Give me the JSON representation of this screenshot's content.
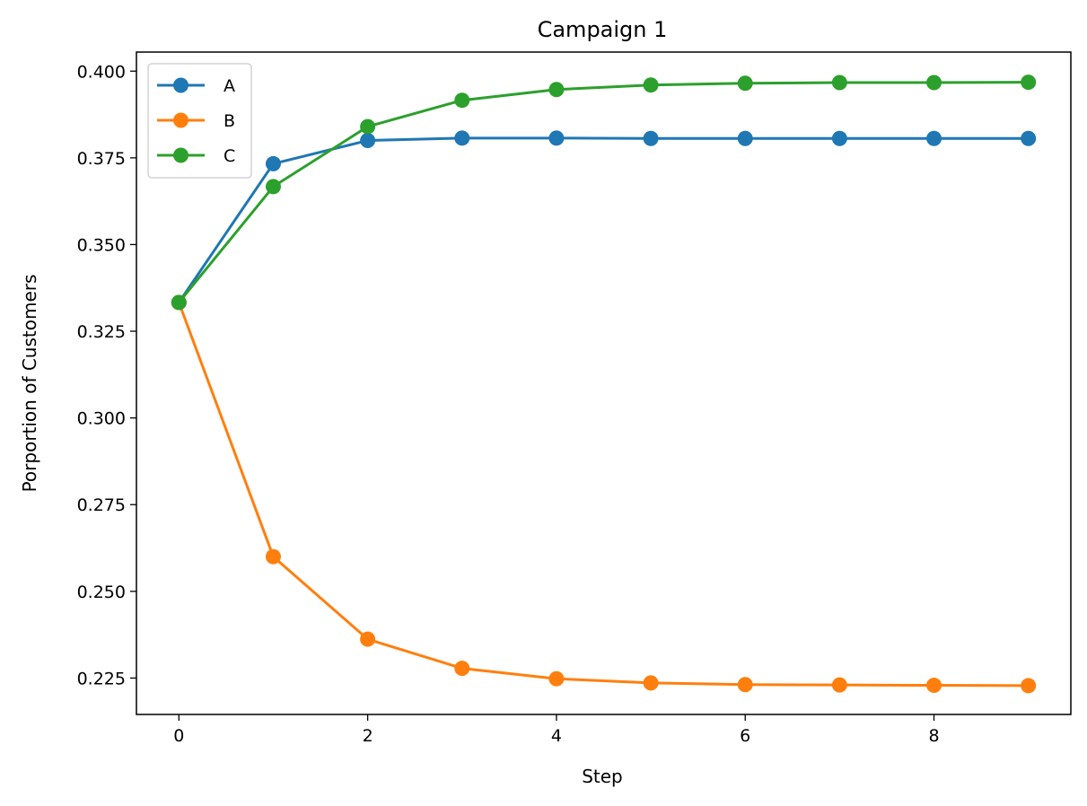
{
  "chart_data": {
    "type": "line",
    "title": "Campaign 1",
    "xlabel": "Step",
    "ylabel": "Porportion of Customers",
    "x": [
      0,
      1,
      2,
      3,
      4,
      5,
      6,
      7,
      8,
      9
    ],
    "xlim": [
      -0.45,
      9.45
    ],
    "ylim": [
      0.2145,
      0.4055
    ],
    "x_ticks": [
      0,
      2,
      4,
      6,
      8
    ],
    "y_ticks": [
      0.225,
      0.25,
      0.275,
      0.3,
      0.325,
      0.35,
      0.375,
      0.4
    ],
    "x_tick_labels": [
      "0",
      "2",
      "4",
      "6",
      "8"
    ],
    "y_tick_labels": [
      "0.225",
      "0.250",
      "0.275",
      "0.300",
      "0.325",
      "0.350",
      "0.375",
      "0.400"
    ],
    "grid": false,
    "legend_position": "top-left",
    "series": [
      {
        "name": "A",
        "color": "#1f77b4",
        "marker": "circle",
        "values": [
          0.3333,
          0.3733,
          0.38,
          0.3807,
          0.3807,
          0.3806,
          0.3806,
          0.3806,
          0.3806,
          0.3806
        ]
      },
      {
        "name": "B",
        "color": "#ff7f0e",
        "marker": "circle",
        "values": [
          0.3333,
          0.26,
          0.2362,
          0.2278,
          0.2248,
          0.2236,
          0.2231,
          0.223,
          0.2229,
          0.2228
        ]
      },
      {
        "name": "C",
        "color": "#2ca02c",
        "marker": "circle",
        "values": [
          0.3333,
          0.3667,
          0.384,
          0.3916,
          0.3947,
          0.396,
          0.3965,
          0.3967,
          0.3967,
          0.3968
        ]
      }
    ]
  }
}
